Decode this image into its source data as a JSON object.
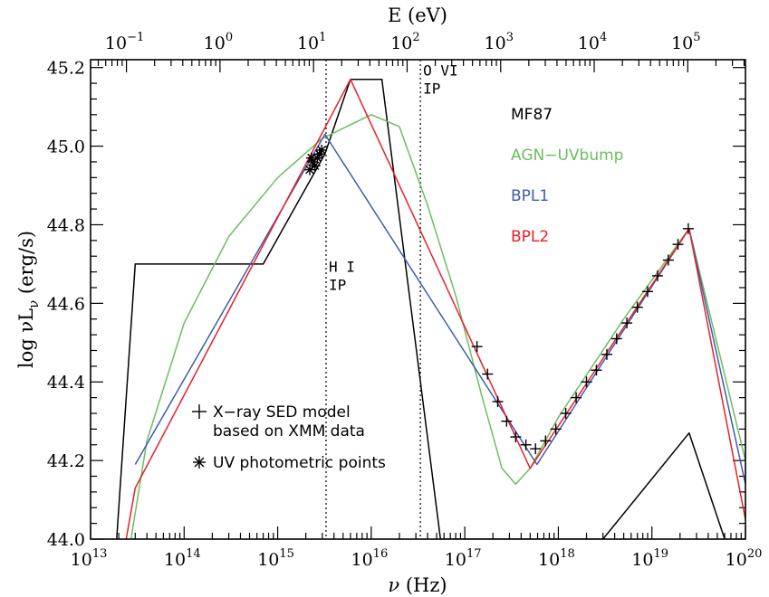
{
  "chart_data": {
    "type": "line",
    "xlabel_pre": "ν",
    "xlabel_unit": "(Hz)",
    "ylabel_pre": "log νL",
    "ylabel_sub": "ν",
    "ylabel_unit": "(erg/s)",
    "top_axis_label": "E (eV)",
    "x_scale": "log",
    "xlim": [
      10000000000000.0,
      1e+20
    ],
    "ylim": [
      44.0,
      45.22
    ],
    "x_ticks": [
      {
        "value": 10000000000000.0,
        "base": "10",
        "exp": "13"
      },
      {
        "value": 100000000000000.0,
        "base": "10",
        "exp": "14"
      },
      {
        "value": 1000000000000000.0,
        "base": "10",
        "exp": "15"
      },
      {
        "value": 1e+16,
        "base": "10",
        "exp": "16"
      },
      {
        "value": 1e+17,
        "base": "10",
        "exp": "17"
      },
      {
        "value": 1e+18,
        "base": "10",
        "exp": "18"
      },
      {
        "value": 1e+19,
        "base": "10",
        "exp": "19"
      },
      {
        "value": 1e+20,
        "base": "10",
        "exp": "20"
      }
    ],
    "y_ticks": [
      {
        "value": 44.0,
        "label": "44.0"
      },
      {
        "value": 44.2,
        "label": "44.2"
      },
      {
        "value": 44.4,
        "label": "44.4"
      },
      {
        "value": 44.6,
        "label": "44.6"
      },
      {
        "value": 44.8,
        "label": "44.8"
      },
      {
        "value": 45.0,
        "label": "45.0"
      },
      {
        "value": 45.2,
        "label": "45.2"
      }
    ],
    "top_ticks_ev": [
      {
        "value": 0.1,
        "base": "10",
        "exp": "−1"
      },
      {
        "value": 1,
        "base": "10",
        "exp": "0"
      },
      {
        "value": 10,
        "base": "10",
        "exp": "1"
      },
      {
        "value": 100,
        "base": "10",
        "exp": "2"
      },
      {
        "value": 1000,
        "base": "10",
        "exp": "3"
      },
      {
        "value": 10000,
        "base": "10",
        "exp": "4"
      },
      {
        "value": 100000,
        "base": "10",
        "exp": "5"
      }
    ],
    "vlines": [
      {
        "x": 3290000000000000.0,
        "line1": "H I",
        "line2": "IP",
        "label_y": 44.68
      },
      {
        "x": 3.35e+16,
        "line1": "O VI",
        "line2": "IP",
        "label_y": 45.18
      }
    ],
    "series": [
      {
        "name": "MF87",
        "color": "#000000",
        "x": [
          19000000000000.0,
          30000000000000.0,
          700000000000000.0,
          3200000000000000.0,
          6000000000000000.0,
          1.3e+16,
          5.5e+16,
          3e+18,
          2.5e+19,
          6e+19
        ],
        "y": [
          44.0,
          44.7,
          44.7,
          44.98,
          45.17,
          45.17,
          44.0,
          44.0,
          44.27,
          44.0
        ]
      },
      {
        "name": "AGN−UVbump",
        "color": "#6abf5e",
        "x": [
          27000000000000.0,
          40000000000000.0,
          100000000000000.0,
          300000000000000.0,
          1000000000000000.0,
          3000000000000000.0,
          1e+16,
          2e+16,
          4e+16,
          8e+16,
          1.5e+17,
          2.5e+17,
          3.5e+17,
          5e+17,
          1e+18,
          5e+18,
          2.5e+19,
          1e+20
        ],
        "y": [
          44.0,
          44.25,
          44.55,
          44.77,
          44.92,
          45.02,
          45.08,
          45.05,
          44.85,
          44.62,
          44.37,
          44.18,
          44.14,
          44.18,
          44.31,
          44.56,
          44.79,
          44.2
        ]
      },
      {
        "name": "BPL1",
        "color": "#3d5ea8",
        "x": [
          30000000000000.0,
          3200000000000000.0,
          5.9e+17,
          2.5e+19,
          1e+20
        ],
        "y": [
          44.19,
          45.03,
          44.19,
          44.79,
          44.14
        ]
      },
      {
        "name": "BPL2",
        "color": "#e8202a",
        "x": [
          24000000000000.0,
          30000000000000.0,
          6000000000000000.0,
          5e+17,
          2.5e+19,
          1e+20
        ],
        "y": [
          44.0,
          44.13,
          45.17,
          44.18,
          44.79,
          44.05
        ]
      }
    ],
    "xray_points": {
      "x": [
        1.35e+17,
        1.75e+17,
        2.25e+17,
        2.8e+17,
        3.5e+17,
        4.5e+17,
        5.7e+17,
        7.3e+17,
        9.4e+17,
        1.2e+18,
        1.55e+18,
        2e+18,
        2.55e+18,
        3.3e+18,
        4.2e+18,
        5.4e+18,
        7e+18,
        9e+18,
        1.15e+19,
        1.5e+19,
        1.9e+19,
        2.45e+19
      ],
      "y": [
        44.49,
        44.42,
        44.35,
        44.3,
        44.26,
        44.24,
        44.23,
        44.25,
        44.28,
        44.32,
        44.36,
        44.4,
        44.43,
        44.47,
        44.51,
        44.55,
        44.59,
        44.63,
        44.67,
        44.71,
        44.75,
        44.79
      ]
    },
    "uv_points": {
      "x": [
        2200000000000000.0,
        2350000000000000.0,
        2500000000000000.0,
        2650000000000000.0,
        2800000000000000.0,
        2950000000000000.0,
        2300000000000000.0
      ],
      "y": [
        44.94,
        44.96,
        44.95,
        44.97,
        44.98,
        44.99,
        44.97
      ]
    },
    "legend_series": [
      {
        "label": "MF87",
        "color": "#000000"
      },
      {
        "label": "AGN−UVbump",
        "color": "#6abf5e"
      },
      {
        "label": "BPL1",
        "color": "#3d5ea8"
      },
      {
        "label": "BPL2",
        "color": "#e8202a"
      }
    ],
    "legend_symbols": [
      {
        "symbol": "plus",
        "line1": "X−ray SED model",
        "line2": "based on XMM data"
      },
      {
        "symbol": "asterisk",
        "line1": "UV photometric points",
        "line2": ""
      }
    ]
  }
}
